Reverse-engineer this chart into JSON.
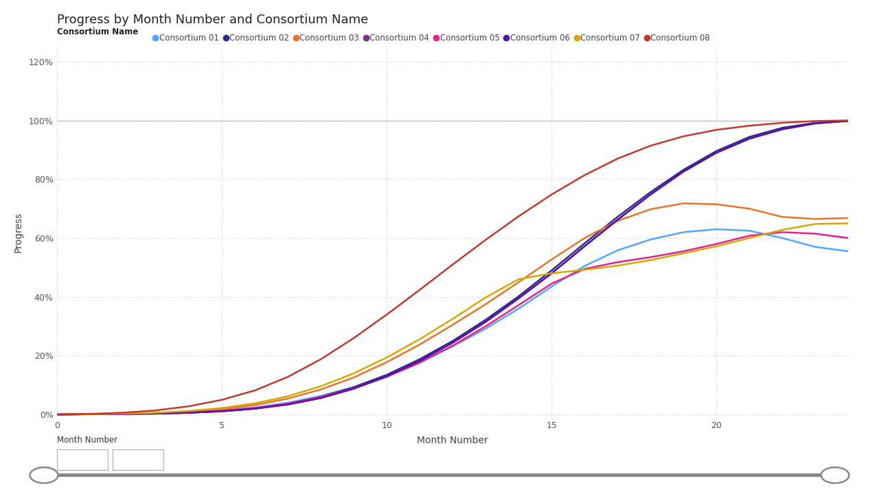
{
  "title": "Progress by Month Number and Consortium Name",
  "xlabel": "Month Number",
  "ylabel": "Progress",
  "legend_title": "Consortium Name",
  "x_ticks": [
    0,
    5,
    10,
    15,
    20
  ],
  "y_ticks": [
    0.0,
    0.2,
    0.4,
    0.6,
    0.8,
    1.0,
    1.2
  ],
  "y_tick_labels": [
    "0%",
    "20%",
    "40%",
    "60%",
    "80%",
    "100%",
    "120%"
  ],
  "xlim": [
    0,
    24
  ],
  "ylim": [
    -0.01,
    1.25
  ],
  "background_color": "#ffffff",
  "grid_color": "#cccccc",
  "hline_100_color": "#bbbbbb",
  "consortia": [
    {
      "name": "Consortium 01",
      "color": "#4da6ff",
      "months": [
        0,
        1,
        2,
        3,
        4,
        5,
        6,
        7,
        8,
        9,
        10,
        11,
        12,
        13,
        14,
        15,
        16,
        17,
        18,
        19,
        20,
        21,
        22,
        23,
        24
      ],
      "progress": [
        0.0,
        0.001,
        0.002,
        0.004,
        0.008,
        0.014,
        0.024,
        0.04,
        0.063,
        0.093,
        0.132,
        0.178,
        0.232,
        0.292,
        0.36,
        0.435,
        0.505,
        0.558,
        0.595,
        0.62,
        0.63,
        0.625,
        0.6,
        0.57,
        0.555
      ]
    },
    {
      "name": "Consortium 02",
      "color": "#2b2b8c",
      "months": [
        0,
        1,
        2,
        3,
        4,
        5,
        6,
        7,
        8,
        9,
        10,
        11,
        12,
        13,
        14,
        15,
        16,
        17,
        18,
        19,
        20,
        21,
        22,
        23,
        24
      ],
      "progress": [
        0.0,
        0.001,
        0.002,
        0.003,
        0.006,
        0.011,
        0.02,
        0.036,
        0.06,
        0.093,
        0.135,
        0.188,
        0.25,
        0.322,
        0.402,
        0.49,
        0.582,
        0.672,
        0.756,
        0.832,
        0.896,
        0.944,
        0.975,
        0.992,
        0.999
      ]
    },
    {
      "name": "Consortium 03",
      "color": "#e8732a",
      "months": [
        0,
        1,
        2,
        3,
        4,
        5,
        6,
        7,
        8,
        9,
        10,
        11,
        12,
        13,
        14,
        15,
        16,
        17,
        18,
        19,
        20,
        21,
        22,
        23,
        24
      ],
      "progress": [
        0.0,
        0.001,
        0.002,
        0.005,
        0.01,
        0.018,
        0.032,
        0.054,
        0.085,
        0.126,
        0.178,
        0.238,
        0.305,
        0.375,
        0.45,
        0.527,
        0.6,
        0.658,
        0.698,
        0.718,
        0.715,
        0.7,
        0.672,
        0.665,
        0.668
      ]
    },
    {
      "name": "Consortium 04",
      "color": "#7b2d8b",
      "months": [
        0,
        1,
        2,
        3,
        4,
        5,
        6,
        7,
        8,
        9,
        10,
        11,
        12,
        13,
        14,
        15,
        16,
        17,
        18,
        19,
        20,
        21,
        22,
        23,
        24
      ],
      "progress": [
        0.0,
        0.001,
        0.002,
        0.003,
        0.006,
        0.011,
        0.02,
        0.034,
        0.056,
        0.088,
        0.13,
        0.182,
        0.244,
        0.315,
        0.395,
        0.48,
        0.572,
        0.662,
        0.748,
        0.826,
        0.89,
        0.938,
        0.97,
        0.99,
        0.999
      ]
    },
    {
      "name": "Consortium 05",
      "color": "#e91e8c",
      "months": [
        0,
        1,
        2,
        3,
        4,
        5,
        6,
        7,
        8,
        9,
        10,
        11,
        12,
        13,
        14,
        15,
        16,
        17,
        18,
        19,
        20,
        21,
        22,
        23,
        24
      ],
      "progress": [
        0.0,
        0.001,
        0.002,
        0.004,
        0.007,
        0.013,
        0.022,
        0.037,
        0.059,
        0.089,
        0.128,
        0.176,
        0.234,
        0.3,
        0.372,
        0.445,
        0.495,
        0.518,
        0.535,
        0.555,
        0.58,
        0.608,
        0.62,
        0.615,
        0.6
      ]
    },
    {
      "name": "Consortium 06",
      "color": "#5c0fa8",
      "months": [
        0,
        1,
        2,
        3,
        4,
        5,
        6,
        7,
        8,
        9,
        10,
        11,
        12,
        13,
        14,
        15,
        16,
        17,
        18,
        19,
        20,
        21,
        22,
        23,
        24
      ],
      "progress": [
        0.0,
        0.001,
        0.002,
        0.003,
        0.006,
        0.011,
        0.02,
        0.034,
        0.056,
        0.088,
        0.13,
        0.182,
        0.244,
        0.315,
        0.395,
        0.48,
        0.572,
        0.662,
        0.748,
        0.826,
        0.89,
        0.938,
        0.97,
        0.99,
        0.998
      ]
    },
    {
      "name": "Consortium 07",
      "color": "#d4a800",
      "months": [
        0,
        1,
        2,
        3,
        4,
        5,
        6,
        7,
        8,
        9,
        10,
        11,
        12,
        13,
        14,
        15,
        16,
        17,
        18,
        19,
        20,
        21,
        22,
        23,
        24
      ],
      "progress": [
        0.0,
        0.001,
        0.003,
        0.006,
        0.012,
        0.022,
        0.038,
        0.062,
        0.096,
        0.14,
        0.194,
        0.256,
        0.325,
        0.398,
        0.46,
        0.48,
        0.492,
        0.506,
        0.525,
        0.548,
        0.572,
        0.6,
        0.628,
        0.648,
        0.65
      ]
    },
    {
      "name": "Consortium 08",
      "color": "#c0392b",
      "months": [
        0,
        1,
        2,
        3,
        4,
        5,
        6,
        7,
        8,
        9,
        10,
        11,
        12,
        13,
        14,
        15,
        16,
        17,
        18,
        19,
        20,
        21,
        22,
        23,
        24
      ],
      "progress": [
        0.0,
        0.002,
        0.006,
        0.014,
        0.028,
        0.05,
        0.082,
        0.128,
        0.188,
        0.26,
        0.34,
        0.424,
        0.51,
        0.594,
        0.674,
        0.748,
        0.814,
        0.87,
        0.914,
        0.946,
        0.968,
        0.982,
        0.992,
        0.998,
        1.0
      ]
    }
  ],
  "slider_label": "Month Number",
  "slider_min": 0,
  "slider_max": 24,
  "line_width": 1.8,
  "title_fontsize": 13,
  "axis_label_fontsize": 10,
  "tick_fontsize": 9,
  "legend_fontsize": 8.5
}
